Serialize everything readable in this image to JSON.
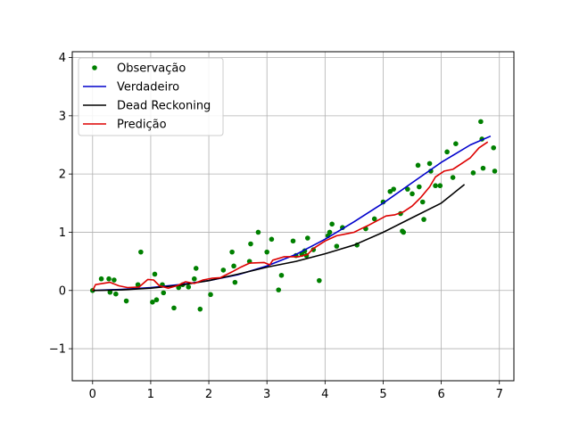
{
  "chart_data": {
    "type": "line",
    "title": "",
    "xlabel": "",
    "ylabel": "",
    "xlim": [
      -0.35,
      7.25
    ],
    "ylim": [
      -1.55,
      4.1
    ],
    "xticks": [
      0,
      1,
      2,
      3,
      4,
      5,
      6,
      7
    ],
    "yticks": [
      -1,
      0,
      1,
      2,
      3,
      4
    ],
    "grid": true,
    "legend": {
      "placement": "top-left",
      "entries": [
        {
          "label": "Observação",
          "color": "#008000",
          "marker": "dot"
        },
        {
          "label": "Verdadeiro",
          "color": "#0000cc",
          "marker": "line"
        },
        {
          "label": "Dead Reckoning",
          "color": "#000000",
          "marker": "line"
        },
        {
          "label": "Predição",
          "color": "#dd0000",
          "marker": "line"
        }
      ]
    },
    "series": [
      {
        "name": "Observação",
        "kind": "scatter",
        "color": "#008000",
        "points": [
          [
            0.0,
            0.0
          ],
          [
            0.15,
            0.2
          ],
          [
            0.28,
            0.2
          ],
          [
            0.3,
            -0.03
          ],
          [
            0.37,
            0.18
          ],
          [
            0.4,
            -0.06
          ],
          [
            0.58,
            -0.18
          ],
          [
            0.78,
            0.1
          ],
          [
            0.83,
            0.66
          ],
          [
            1.03,
            -0.2
          ],
          [
            1.07,
            0.28
          ],
          [
            1.1,
            -0.16
          ],
          [
            1.2,
            0.1
          ],
          [
            1.22,
            -0.04
          ],
          [
            1.4,
            -0.3
          ],
          [
            1.48,
            0.05
          ],
          [
            1.55,
            0.1
          ],
          [
            1.65,
            0.06
          ],
          [
            1.75,
            0.2
          ],
          [
            1.78,
            0.38
          ],
          [
            1.85,
            -0.32
          ],
          [
            2.03,
            -0.07
          ],
          [
            2.25,
            0.35
          ],
          [
            2.4,
            0.66
          ],
          [
            2.43,
            0.42
          ],
          [
            2.45,
            0.14
          ],
          [
            2.7,
            0.5
          ],
          [
            2.72,
            0.8
          ],
          [
            2.85,
            1.0
          ],
          [
            3.0,
            0.66
          ],
          [
            3.08,
            0.88
          ],
          [
            3.2,
            0.01
          ],
          [
            3.25,
            0.26
          ],
          [
            3.45,
            0.85
          ],
          [
            3.5,
            0.6
          ],
          [
            3.6,
            0.62
          ],
          [
            3.65,
            0.68
          ],
          [
            3.68,
            0.6
          ],
          [
            3.7,
            0.9
          ],
          [
            3.8,
            0.7
          ],
          [
            3.9,
            0.17
          ],
          [
            4.05,
            0.94
          ],
          [
            4.08,
            1.0
          ],
          [
            4.12,
            1.14
          ],
          [
            4.2,
            0.76
          ],
          [
            4.3,
            1.08
          ],
          [
            4.55,
            0.78
          ],
          [
            4.7,
            1.06
          ],
          [
            4.85,
            1.23
          ],
          [
            5.0,
            1.52
          ],
          [
            5.12,
            1.7
          ],
          [
            5.18,
            1.74
          ],
          [
            5.3,
            1.32
          ],
          [
            5.33,
            1.02
          ],
          [
            5.35,
            1.0
          ],
          [
            5.42,
            1.74
          ],
          [
            5.5,
            1.66
          ],
          [
            5.6,
            2.15
          ],
          [
            5.62,
            1.78
          ],
          [
            5.68,
            1.52
          ],
          [
            5.7,
            1.22
          ],
          [
            5.8,
            2.18
          ],
          [
            5.82,
            2.05
          ],
          [
            5.9,
            1.8
          ],
          [
            5.98,
            1.8
          ],
          [
            6.1,
            2.38
          ],
          [
            6.2,
            1.94
          ],
          [
            6.25,
            2.52
          ],
          [
            6.55,
            2.02
          ],
          [
            6.68,
            2.9
          ],
          [
            6.7,
            2.6
          ],
          [
            6.72,
            2.1
          ],
          [
            6.9,
            2.45
          ],
          [
            6.92,
            2.05
          ]
        ]
      },
      {
        "name": "Verdadeiro",
        "kind": "line",
        "color": "#0000cc",
        "points": [
          [
            0.0,
            0.0
          ],
          [
            0.5,
            0.02
          ],
          [
            1.0,
            0.05
          ],
          [
            1.5,
            0.1
          ],
          [
            2.0,
            0.17
          ],
          [
            2.5,
            0.27
          ],
          [
            3.0,
            0.42
          ],
          [
            3.5,
            0.62
          ],
          [
            4.0,
            0.88
          ],
          [
            4.5,
            1.18
          ],
          [
            5.0,
            1.5
          ],
          [
            5.5,
            1.85
          ],
          [
            6.0,
            2.2
          ],
          [
            6.5,
            2.5
          ],
          [
            6.85,
            2.65
          ]
        ]
      },
      {
        "name": "Dead Reckoning",
        "kind": "line",
        "color": "#000000",
        "points": [
          [
            0.0,
            0.0
          ],
          [
            0.5,
            0.01
          ],
          [
            1.0,
            0.04
          ],
          [
            1.5,
            0.09
          ],
          [
            2.0,
            0.17
          ],
          [
            2.5,
            0.28
          ],
          [
            3.0,
            0.4
          ],
          [
            3.5,
            0.5
          ],
          [
            4.0,
            0.63
          ],
          [
            4.5,
            0.78
          ],
          [
            5.0,
            1.0
          ],
          [
            5.5,
            1.25
          ],
          [
            6.0,
            1.5
          ],
          [
            6.4,
            1.82
          ]
        ]
      },
      {
        "name": "Predição",
        "kind": "line",
        "color": "#dd0000",
        "points": [
          [
            0.0,
            0.0
          ],
          [
            0.05,
            0.1
          ],
          [
            0.3,
            0.14
          ],
          [
            0.45,
            0.08
          ],
          [
            0.6,
            0.05
          ],
          [
            0.8,
            0.06
          ],
          [
            0.95,
            0.19
          ],
          [
            1.05,
            0.18
          ],
          [
            1.15,
            0.08
          ],
          [
            1.3,
            0.04
          ],
          [
            1.45,
            0.08
          ],
          [
            1.6,
            0.15
          ],
          [
            1.75,
            0.12
          ],
          [
            1.9,
            0.18
          ],
          [
            2.05,
            0.21
          ],
          [
            2.2,
            0.22
          ],
          [
            2.4,
            0.32
          ],
          [
            2.55,
            0.4
          ],
          [
            2.7,
            0.47
          ],
          [
            2.95,
            0.48
          ],
          [
            3.05,
            0.44
          ],
          [
            3.1,
            0.52
          ],
          [
            3.3,
            0.58
          ],
          [
            3.55,
            0.58
          ],
          [
            3.7,
            0.62
          ],
          [
            3.8,
            0.72
          ],
          [
            4.0,
            0.85
          ],
          [
            4.2,
            0.94
          ],
          [
            4.4,
            0.98
          ],
          [
            4.5,
            1.0
          ],
          [
            4.6,
            1.05
          ],
          [
            4.75,
            1.12
          ],
          [
            4.9,
            1.2
          ],
          [
            5.05,
            1.28
          ],
          [
            5.2,
            1.3
          ],
          [
            5.35,
            1.35
          ],
          [
            5.5,
            1.45
          ],
          [
            5.65,
            1.6
          ],
          [
            5.8,
            1.78
          ],
          [
            5.9,
            1.95
          ],
          [
            6.05,
            2.05
          ],
          [
            6.2,
            2.08
          ],
          [
            6.35,
            2.18
          ],
          [
            6.5,
            2.28
          ],
          [
            6.65,
            2.45
          ],
          [
            6.8,
            2.55
          ]
        ]
      }
    ]
  }
}
